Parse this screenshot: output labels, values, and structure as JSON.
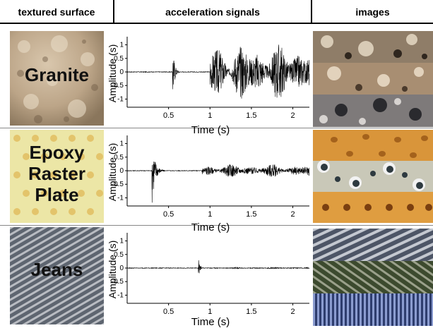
{
  "headers": {
    "col1": "textured surface",
    "col2": "acceleration signals",
    "col3": "images"
  },
  "rows": [
    {
      "surface": "Granite",
      "label_lines": [
        "Granite"
      ],
      "surface_color": "#c2ad91",
      "chart": {
        "type": "line",
        "xlabel": "Time (s)",
        "ylabel": "Amplitude (s)",
        "xlim": [
          0,
          2.2
        ],
        "ylim": [
          -1.3,
          1.3
        ],
        "xticks": [
          "0.5",
          "1",
          "1.5",
          "2"
        ],
        "yticks": [
          "1",
          "0.5",
          "0",
          "-0.5",
          "-1"
        ],
        "events": [
          {
            "start": 0.55,
            "end": 0.64,
            "amplitude": 1.0
          },
          {
            "start": 1.0,
            "end": 2.2,
            "amplitude": 1.1
          }
        ]
      }
    },
    {
      "surface": "Epoxy Raster Plate",
      "label_lines": [
        "Epoxy",
        "Raster",
        "Plate"
      ],
      "surface_color": "#ece6a6",
      "chart": {
        "type": "line",
        "xlabel": "Time (s)",
        "ylabel": "Amplitude (s)",
        "xlim": [
          0,
          2.2
        ],
        "ylim": [
          -1.3,
          1.3
        ],
        "xticks": [
          "0.5",
          "1",
          "1.5",
          "2"
        ],
        "yticks": [
          "1",
          "0.5",
          "0",
          "-0.5",
          "-1"
        ],
        "events": [
          {
            "start": 0.3,
            "end": 0.45,
            "amplitude": 1.2
          },
          {
            "start": 0.9,
            "end": 2.2,
            "amplitude": 0.25
          }
        ]
      }
    },
    {
      "surface": "Jeans",
      "label_lines": [
        "Jeans"
      ],
      "surface_color": "#7a7f88",
      "chart": {
        "type": "line",
        "xlabel": "Time (s)",
        "ylabel": "Amplitude (s)",
        "xlim": [
          0,
          2.2
        ],
        "ylim": [
          -1.3,
          1.3
        ],
        "xticks": [
          "0.5",
          "1",
          "1.5",
          "2"
        ],
        "yticks": [
          "1",
          "0.5",
          "0",
          "-0.5",
          "-1"
        ],
        "events": [
          {
            "start": 0.86,
            "end": 0.93,
            "amplitude": 0.4
          },
          {
            "start": 1.05,
            "end": 2.2,
            "amplitude": 0.03
          }
        ]
      }
    }
  ]
}
